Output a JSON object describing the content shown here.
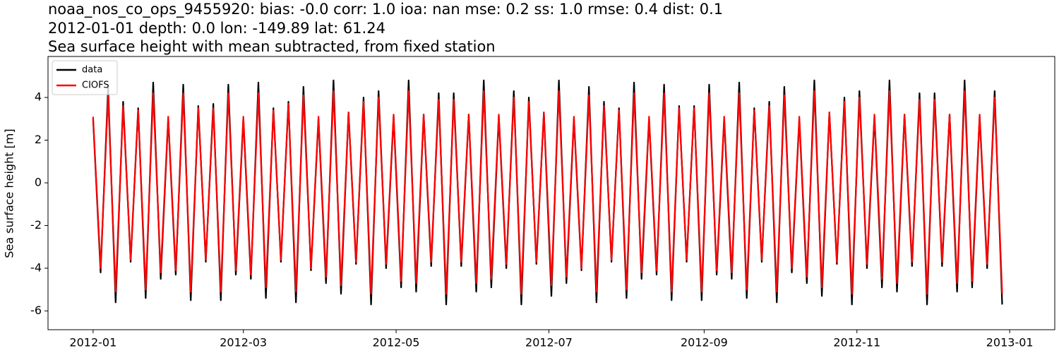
{
  "chart_data": {
    "type": "line",
    "title": [
      "noaa_nos_co_ops_9455920: bias: -0.0  corr: 1.0  ioa: nan  mse: 0.2  ss: 1.0  rmse: 0.4  dist: 0.1",
      "2012-01-01 depth: 0.0 lon: -149.89 lat: 61.24",
      "Sea surface height with mean subtracted, from fixed station"
    ],
    "y_label": "Sea surface height [m]",
    "x": [
      "2012-01-01",
      "2012-01-04",
      "2012-01-07",
      "2012-01-10",
      "2012-01-13",
      "2012-01-16",
      "2012-01-19",
      "2012-01-22",
      "2012-01-25",
      "2012-01-28",
      "2012-01-31",
      "2012-02-03",
      "2012-02-06",
      "2012-02-09",
      "2012-02-12",
      "2012-02-15",
      "2012-02-18",
      "2012-02-21",
      "2012-02-24",
      "2012-02-27",
      "2012-03-01",
      "2012-03-04",
      "2012-03-07",
      "2012-03-10",
      "2012-03-13",
      "2012-03-16",
      "2012-03-19",
      "2012-03-22",
      "2012-03-25",
      "2012-03-28",
      "2012-03-31",
      "2012-04-03",
      "2012-04-06",
      "2012-04-09",
      "2012-04-12",
      "2012-04-15",
      "2012-04-18",
      "2012-04-21",
      "2012-04-24",
      "2012-04-27",
      "2012-04-30",
      "2012-05-03",
      "2012-05-06",
      "2012-05-09",
      "2012-05-12",
      "2012-05-15",
      "2012-05-18",
      "2012-05-21",
      "2012-05-24",
      "2012-05-27",
      "2012-05-30",
      "2012-06-02",
      "2012-06-05",
      "2012-06-08",
      "2012-06-11",
      "2012-06-14",
      "2012-06-17",
      "2012-06-20",
      "2012-06-23",
      "2012-06-26",
      "2012-06-29",
      "2012-07-02",
      "2012-07-05",
      "2012-07-08",
      "2012-07-11",
      "2012-07-14",
      "2012-07-17",
      "2012-07-20",
      "2012-07-23",
      "2012-07-26",
      "2012-07-29",
      "2012-08-01",
      "2012-08-04",
      "2012-08-07",
      "2012-08-10",
      "2012-08-13",
      "2012-08-16",
      "2012-08-19",
      "2012-08-22",
      "2012-08-25",
      "2012-08-28",
      "2012-08-31",
      "2012-09-03",
      "2012-09-06",
      "2012-09-09",
      "2012-09-12",
      "2012-09-15",
      "2012-09-18",
      "2012-09-21",
      "2012-09-24",
      "2012-09-27",
      "2012-09-30",
      "2012-10-03",
      "2012-10-06",
      "2012-10-09",
      "2012-10-12",
      "2012-10-15",
      "2012-10-18",
      "2012-10-21",
      "2012-10-24",
      "2012-10-27",
      "2012-10-30",
      "2012-11-02",
      "2012-11-05",
      "2012-11-08",
      "2012-11-11",
      "2012-11-14",
      "2012-11-17",
      "2012-11-20",
      "2012-11-23",
      "2012-11-26",
      "2012-11-29",
      "2012-12-02",
      "2012-12-05",
      "2012-12-08",
      "2012-12-11",
      "2012-12-14",
      "2012-12-17",
      "2012-12-20",
      "2012-12-23",
      "2012-12-26",
      "2012-12-29"
    ],
    "series": [
      {
        "name": "data",
        "color": "#000000",
        "values": [
          3.0,
          -4.2,
          4.5,
          -5.6,
          3.8,
          -3.7,
          3.5,
          -5.4,
          4.7,
          -4.5,
          3.0,
          -4.3,
          4.6,
          -5.5,
          3.6,
          -3.7,
          3.7,
          -5.5,
          4.6,
          -4.3,
          3.0,
          -4.5,
          4.7,
          -5.4,
          3.5,
          -3.7,
          3.8,
          -5.6,
          4.5,
          -4.1,
          3.0,
          -4.7,
          4.8,
          -5.2,
          3.3,
          -3.8,
          4.0,
          -5.7,
          4.3,
          -4.0,
          3.1,
          -4.9,
          4.8,
          -5.1,
          3.2,
          -3.9,
          4.2,
          -5.7,
          4.2,
          -3.9,
          3.2,
          -5.1,
          4.8,
          -4.9,
          3.1,
          -4.0,
          4.3,
          -5.7,
          4.0,
          -3.8,
          3.3,
          -5.3,
          4.8,
          -4.7,
          3.0,
          -4.1,
          4.5,
          -5.6,
          3.8,
          -3.7,
          3.5,
          -5.4,
          4.7,
          -4.5,
          3.0,
          -4.3,
          4.6,
          -5.5,
          3.6,
          -3.7,
          3.6,
          -5.5,
          4.6,
          -4.3,
          3.0,
          -4.5,
          4.7,
          -5.4,
          3.5,
          -3.7,
          3.8,
          -5.6,
          4.5,
          -4.2,
          3.0,
          -4.7,
          4.8,
          -5.3,
          3.3,
          -3.8,
          4.0,
          -5.7,
          4.3,
          -4.0,
          3.1,
          -4.9,
          4.8,
          -5.1,
          3.2,
          -3.9,
          4.2,
          -5.7,
          4.2,
          -3.9,
          3.2,
          -5.1,
          4.8,
          -4.9,
          3.1,
          -4.0,
          4.3,
          -5.7
        ]
      },
      {
        "name": "CIOFS",
        "color": "#ff0000",
        "values": [
          3.1,
          -4.0,
          4.1,
          -5.1,
          3.6,
          -3.6,
          3.4,
          -5.0,
          4.2,
          -4.2,
          3.1,
          -4.1,
          4.2,
          -5.1,
          3.5,
          -3.6,
          3.5,
          -5.1,
          4.2,
          -4.1,
          3.1,
          -4.3,
          4.2,
          -4.9,
          3.4,
          -3.6,
          3.7,
          -5.1,
          4.1,
          -4.0,
          3.1,
          -4.4,
          4.3,
          -4.8,
          3.3,
          -3.7,
          3.8,
          -5.2,
          4.0,
          -3.8,
          3.2,
          -4.6,
          4.3,
          -4.7,
          3.2,
          -3.7,
          3.9,
          -5.2,
          3.9,
          -3.7,
          3.2,
          -4.7,
          4.3,
          -4.5,
          3.2,
          -3.8,
          4.0,
          -5.2,
          3.8,
          -3.7,
          3.3,
          -4.8,
          4.3,
          -4.4,
          3.1,
          -4.0,
          4.1,
          -5.1,
          3.6,
          -3.6,
          3.4,
          -5.0,
          4.2,
          -4.2,
          3.1,
          -4.1,
          4.2,
          -5.1,
          3.5,
          -3.6,
          3.5,
          -5.1,
          4.2,
          -4.1,
          3.1,
          -4.2,
          4.2,
          -5.0,
          3.4,
          -3.6,
          3.6,
          -5.1,
          4.1,
          -4.0,
          3.1,
          -4.4,
          4.3,
          -4.9,
          3.3,
          -3.7,
          3.8,
          -5.2,
          4.0,
          -3.8,
          3.2,
          -4.5,
          4.3,
          -4.7,
          3.2,
          -3.7,
          3.9,
          -5.2,
          3.9,
          -3.7,
          3.2,
          -4.7,
          4.3,
          -4.6,
          3.2,
          -3.8,
          4.0,
          -5.2
        ]
      }
    ],
    "xlim": [
      "2011-12-14",
      "2013-01-19"
    ],
    "xticks": [
      "2012-01",
      "2012-03",
      "2012-05",
      "2012-07",
      "2012-09",
      "2012-11",
      "2013-01"
    ],
    "ylim": [
      -6.88,
      5.92
    ],
    "yticks": [
      -6,
      -4,
      -2,
      0,
      2,
      4
    ],
    "legend": "upper left"
  }
}
